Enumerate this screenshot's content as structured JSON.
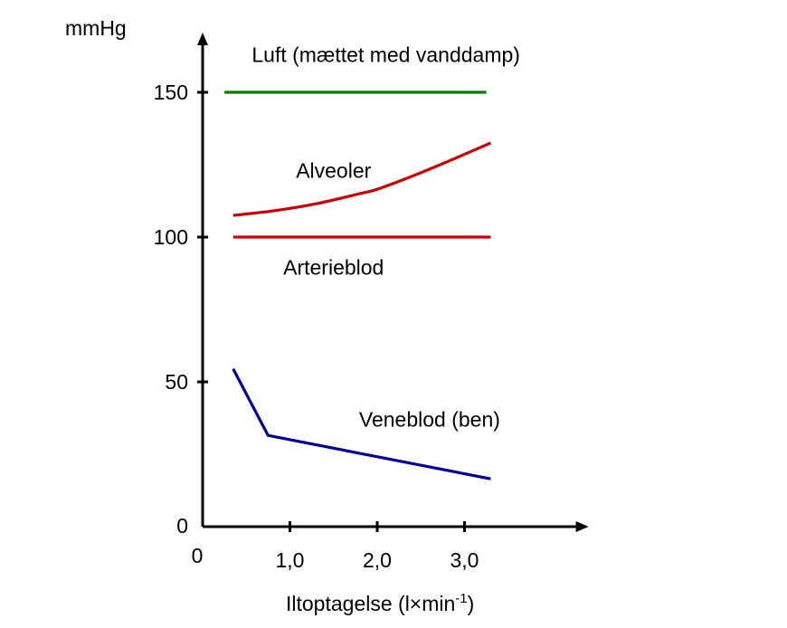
{
  "chart_data": {
    "type": "line",
    "ylabel": "mmHg",
    "xlabel": "Iltoptagelse (l×min",
    "xlabel_sup": "-1",
    "xlabel_end": ")",
    "xlim": [
      0,
      4.4
    ],
    "ylim": [
      0,
      170
    ],
    "x_ticks": [
      {
        "value": 0,
        "label": "0"
      },
      {
        "value": 1,
        "label": "1,0"
      },
      {
        "value": 2,
        "label": "2,0"
      },
      {
        "value": 3,
        "label": "3,0"
      }
    ],
    "y_ticks": [
      {
        "value": 0,
        "label": "0"
      },
      {
        "value": 50,
        "label": "50"
      },
      {
        "value": 100,
        "label": "100"
      },
      {
        "value": 150,
        "label": "150"
      }
    ],
    "grid": false,
    "series": [
      {
        "name": "Luft (mættet med vanddamp)",
        "color": "#008000",
        "points": [
          [
            0.25,
            150
          ],
          [
            3.25,
            150
          ]
        ],
        "label_at": [
          2.1,
          160.5
        ]
      },
      {
        "name": "Alveoler",
        "color": "#cc0000",
        "points": [
          [
            0.35,
            107.5
          ],
          [
            0.8,
            109
          ],
          [
            1.3,
            111.5
          ],
          [
            1.8,
            115
          ],
          [
            2.0,
            116.5
          ],
          [
            2.4,
            121
          ],
          [
            2.8,
            126
          ],
          [
            3.3,
            132.5
          ]
        ],
        "label_at": [
          1.5,
          120.5
        ]
      },
      {
        "name": "Arterieblod",
        "color": "#cc0000",
        "points": [
          [
            0.35,
            100
          ],
          [
            3.3,
            100
          ]
        ],
        "label_at": [
          1.5,
          87
        ]
      },
      {
        "name": "Veneblod (ben)",
        "color": "#000099",
        "points": [
          [
            0.35,
            54.5
          ],
          [
            0.75,
            31.5
          ],
          [
            3.3,
            16.5
          ]
        ],
        "label_at": [
          2.6,
          34.5
        ]
      }
    ]
  }
}
